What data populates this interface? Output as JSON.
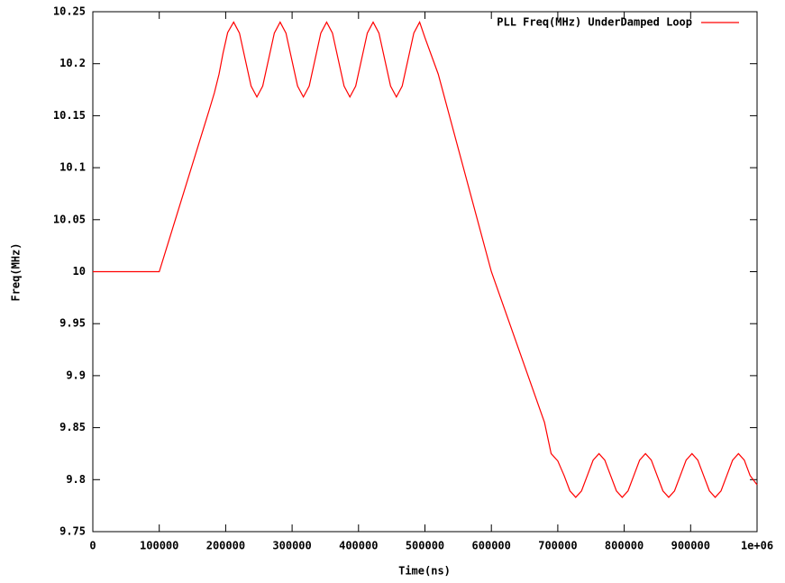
{
  "chart_data": {
    "type": "line",
    "xlabel": "Time(ns)",
    "ylabel": "Freq(MHz)",
    "x": [
      0,
      100000,
      175000,
      183000,
      190000,
      196000,
      203000,
      212000,
      220750,
      229500,
      238250,
      247000,
      255750,
      264500,
      273250,
      282000,
      290750,
      299500,
      308250,
      317000,
      325750,
      334500,
      343250,
      352000,
      360750,
      369500,
      378250,
      387000,
      395750,
      404500,
      413250,
      422000,
      430750,
      439500,
      448250,
      457000,
      465750,
      474500,
      483250,
      492000,
      500000,
      520000,
      600000,
      680000,
      690000,
      700000,
      709500,
      718250,
      727000,
      735750,
      744500,
      753250,
      762000,
      770750,
      779500,
      788250,
      797000,
      805750,
      814500,
      823250,
      832000,
      840750,
      849500,
      858250,
      867000,
      875750,
      884500,
      893250,
      902000,
      910750,
      919500,
      928250,
      937000,
      945750,
      954500,
      963250,
      972000,
      980750,
      989500,
      1000000
    ],
    "series": [
      {
        "name": "PLL Freq(MHz) UnderDamped Loop",
        "color": "#ff0000",
        "values": [
          10,
          10,
          10.155,
          10.172,
          10.19,
          10.21,
          10.23,
          10.24,
          10.2295,
          10.204,
          10.1785,
          10.168,
          10.1785,
          10.204,
          10.2295,
          10.24,
          10.2295,
          10.204,
          10.1785,
          10.168,
          10.1785,
          10.204,
          10.2295,
          10.24,
          10.2295,
          10.204,
          10.1785,
          10.168,
          10.1785,
          10.204,
          10.2295,
          10.24,
          10.2295,
          10.204,
          10.1785,
          10.168,
          10.1785,
          10.204,
          10.2295,
          10.24,
          10.225,
          10.19,
          10.0,
          9.855,
          9.825,
          9.818,
          9.804,
          9.7892,
          9.783,
          9.7892,
          9.804,
          9.8188,
          9.825,
          9.8188,
          9.804,
          9.7892,
          9.783,
          9.7892,
          9.804,
          9.8188,
          9.825,
          9.8188,
          9.804,
          9.7892,
          9.783,
          9.7892,
          9.804,
          9.8188,
          9.825,
          9.8188,
          9.804,
          9.7892,
          9.783,
          9.7892,
          9.804,
          9.8188,
          9.825,
          9.8188,
          9.804,
          9.795
        ]
      }
    ],
    "xlim": [
      0,
      1000000
    ],
    "xticks": [
      0,
      100000,
      200000,
      300000,
      400000,
      500000,
      600000,
      700000,
      800000,
      900000,
      {
        "value": 1000000,
        "label": "1e+06"
      }
    ],
    "ylim": [
      9.75,
      10.25
    ],
    "yticks": [
      9.75,
      9.8,
      9.85,
      9.9,
      9.95,
      10,
      10.05,
      10.1,
      10.15,
      10.2,
      10.25
    ],
    "grid": false,
    "legend": "top-right"
  }
}
